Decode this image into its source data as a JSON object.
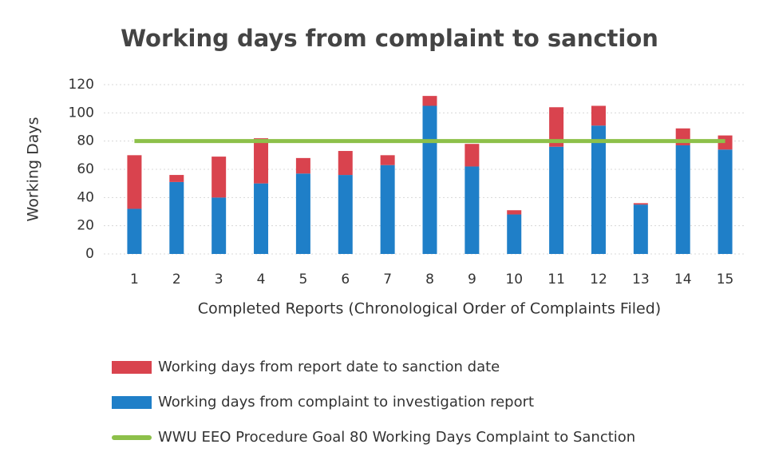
{
  "chart_data": {
    "type": "bar",
    "stacked": true,
    "title": "Working days from complaint to sanction",
    "y_label": "Working Days",
    "x_label": "Completed Reports (Chronological Order of Complaints Filed)",
    "categories": [
      "1",
      "2",
      "3",
      "4",
      "5",
      "6",
      "7",
      "8",
      "9",
      "10",
      "11",
      "12",
      "13",
      "14",
      "15"
    ],
    "series": [
      {
        "name": "Working days from report date to sanction date",
        "color": "#d9434e",
        "type": "bar",
        "values": [
          38,
          5,
          29,
          32,
          11,
          17,
          7,
          7,
          16,
          3,
          28,
          14,
          1,
          12,
          10
        ]
      },
      {
        "name": "Working days from complaint to investigation report",
        "color": "#1f7fc8",
        "type": "bar",
        "values": [
          32,
          51,
          40,
          50,
          57,
          56,
          63,
          105,
          62,
          28,
          76,
          91,
          35,
          77,
          74
        ]
      },
      {
        "name": "WWU EEO Procedure Goal 80 Working Days Complaint to Sanction",
        "color": "#8dc04a",
        "type": "line",
        "values": [
          80,
          80,
          80,
          80,
          80,
          80,
          80,
          80,
          80,
          80,
          80,
          80,
          80,
          80,
          80
        ]
      }
    ],
    "ylim": [
      0,
      120
    ],
    "yticks": [
      0,
      20,
      40,
      60,
      80,
      100,
      120
    ],
    "grid": true,
    "legend": "bottom"
  }
}
